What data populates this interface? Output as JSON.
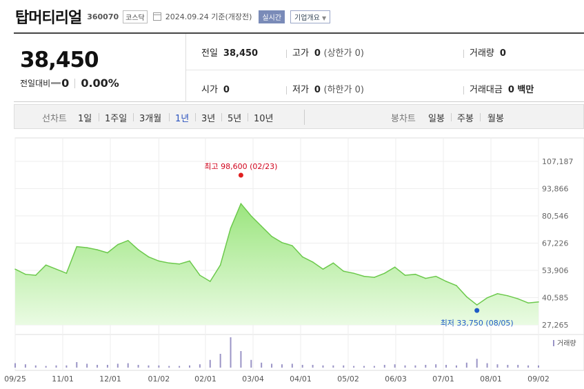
{
  "header": {
    "name": "탑머티리얼",
    "code": "360070",
    "market": "코스닥",
    "date": "2024.09.24 기준(개장전)",
    "realtime": "실시간",
    "company_info": "기업개요"
  },
  "quote": {
    "price": "38,450",
    "change_label": "전일대비",
    "change": "0",
    "change_pct": "0.00%",
    "prev_close_label": "전일",
    "prev_close": "38,450",
    "high_label": "고가",
    "high": "0",
    "high_limit": "(상한가 0)",
    "volume_label": "거래량",
    "volume": "0",
    "open_label": "시가",
    "open": "0",
    "low_label": "저가",
    "low": "0",
    "low_limit": "(하한가 0)",
    "amount_label": "거래대금",
    "amount": "0 백만"
  },
  "tabs": {
    "line_label": "선차트",
    "line": [
      "1일",
      "1주일",
      "3개월",
      "1년",
      "3년",
      "5년",
      "10년"
    ],
    "active": "1년",
    "candle_label": "봉차트",
    "candle": [
      "일봉",
      "주봉",
      "월봉"
    ]
  },
  "chart_data": {
    "type": "area",
    "x_ticks": [
      "09/25",
      "11/01",
      "12/01",
      "01/02",
      "02/01",
      "03/04",
      "04/01",
      "05/02",
      "06/03",
      "07/01",
      "08/01",
      "09/02"
    ],
    "y_ticks": [
      "107,187",
      "93,866",
      "80,546",
      "67,226",
      "53,906",
      "40,585",
      "27,265"
    ],
    "ylim": [
      27265,
      107187
    ],
    "max_annotation": "최고 98,600 (02/23)",
    "min_annotation": "최저 33,750 (08/05)",
    "volume_label": "거래량",
    "x": [
      "09/25",
      "10/02",
      "10/09",
      "10/16",
      "10/23",
      "10/30",
      "11/06",
      "11/13",
      "11/20",
      "11/27",
      "12/04",
      "12/11",
      "12/18",
      "12/26",
      "01/02",
      "01/09",
      "01/16",
      "01/23",
      "01/30",
      "02/06",
      "02/13",
      "02/20",
      "02/27",
      "03/05",
      "03/12",
      "03/19",
      "03/26",
      "04/02",
      "04/09",
      "04/16",
      "04/23",
      "04/30",
      "05/07",
      "05/14",
      "05/21",
      "05/28",
      "06/04",
      "06/11",
      "06/18",
      "06/25",
      "07/02",
      "07/09",
      "07/16",
      "07/23",
      "07/30",
      "08/06",
      "08/13",
      "08/20",
      "08/27",
      "09/03",
      "09/10",
      "09/23"
    ],
    "values": [
      54500,
      52000,
      51500,
      56500,
      54500,
      52500,
      65500,
      65000,
      64000,
      62500,
      66500,
      68500,
      64000,
      60500,
      58500,
      57500,
      57000,
      58500,
      51500,
      48500,
      56500,
      74500,
      86500,
      80500,
      75500,
      70500,
      67500,
      66000,
      60500,
      58000,
      54500,
      57500,
      53500,
      52500,
      51000,
      50500,
      52500,
      55500,
      51500,
      52000,
      50000,
      51000,
      48500,
      46500,
      41000,
      37000,
      40500,
      42500,
      41500,
      40000,
      38000,
      38450
    ],
    "volume": [
      8,
      6,
      4,
      3,
      4,
      4,
      10,
      7,
      5,
      5,
      7,
      8,
      5,
      4,
      4,
      3,
      3,
      4,
      6,
      14,
      25,
      55,
      30,
      14,
      9,
      7,
      6,
      7,
      5,
      5,
      4,
      4,
      4,
      3,
      3,
      3,
      5,
      6,
      4,
      4,
      5,
      6,
      5,
      4,
      9,
      16,
      8,
      6,
      5,
      5,
      4,
      4
    ],
    "grid": true
  }
}
